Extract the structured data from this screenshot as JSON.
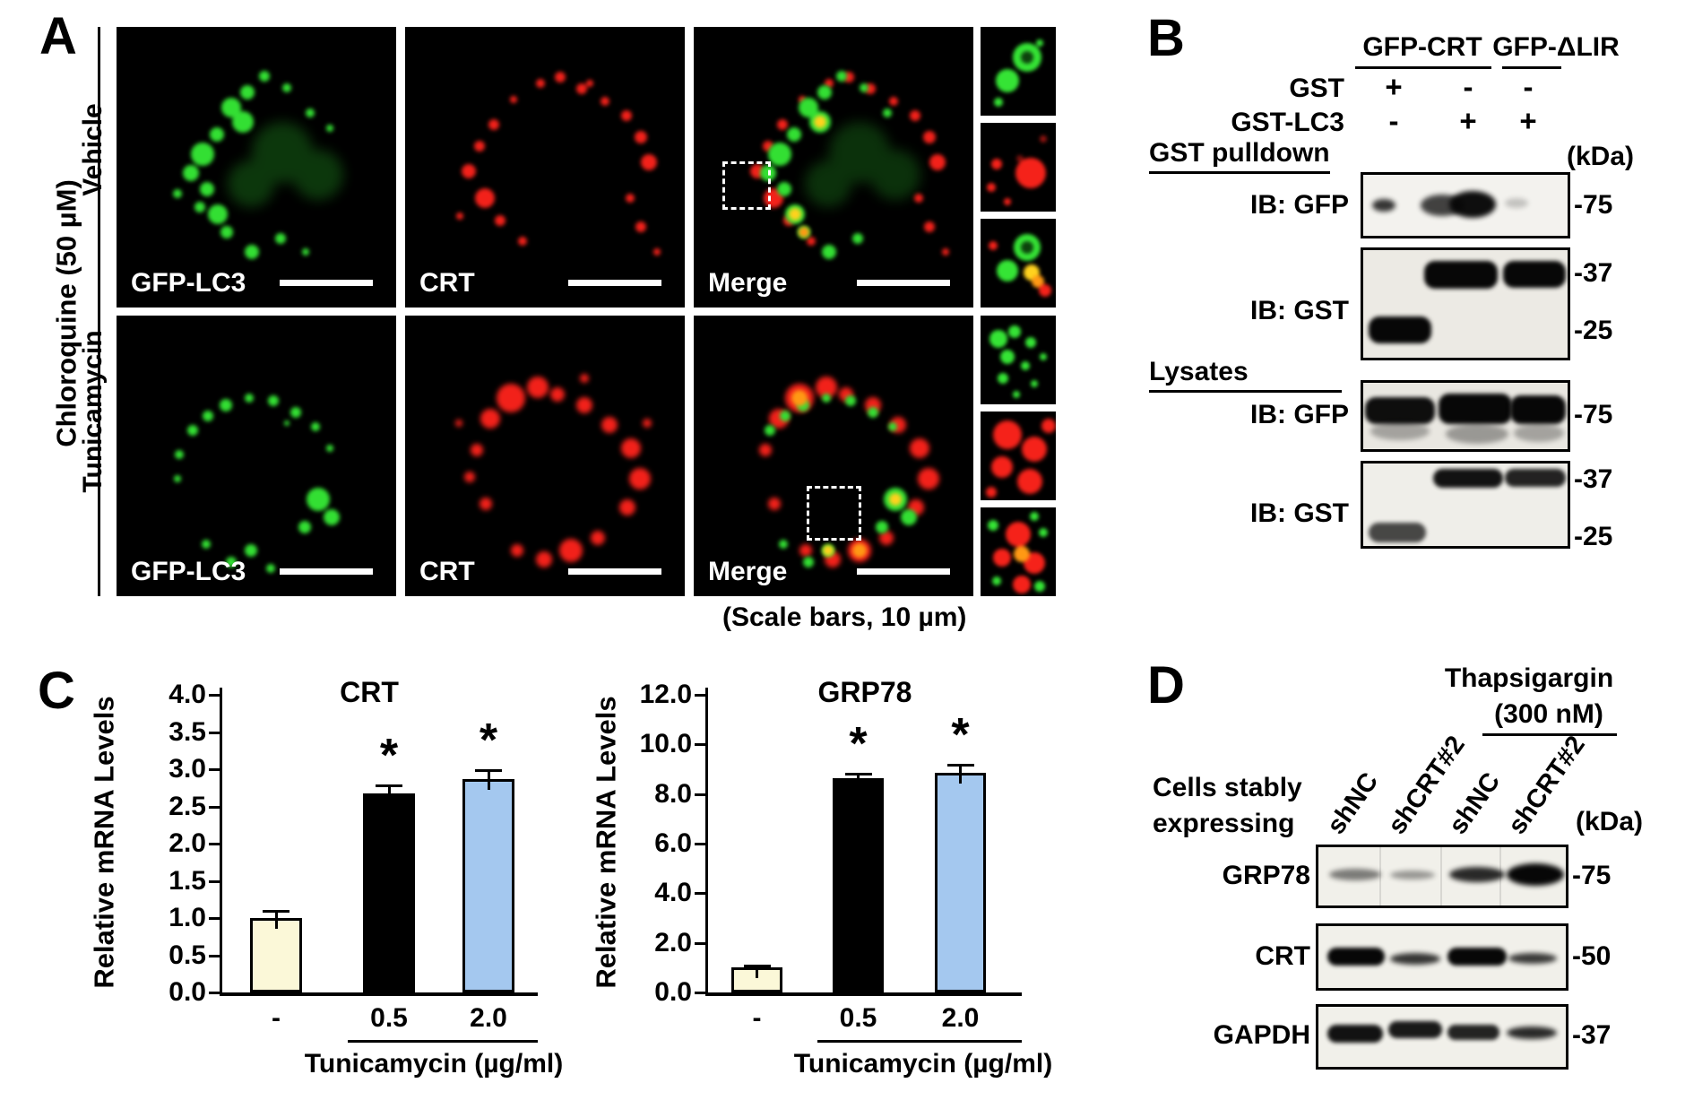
{
  "figure": {
    "panels": {
      "A": {
        "label": "A",
        "group_label": "Chloroquine (50 µM)",
        "rows": [
          {
            "label": "Vehicle",
            "image_labels": [
              "GFP-LC3",
              "CRT",
              "Merge"
            ]
          },
          {
            "label": "Tunicamycin",
            "image_labels": [
              "GFP-LC3",
              "CRT",
              "Merge"
            ]
          }
        ],
        "scale_note": "(Scale bars, 10 µm)"
      },
      "B": {
        "label": "B",
        "col_groups": [
          "GFP-CRT",
          "GFP-ΔLIR"
        ],
        "condition_rows": [
          {
            "label": "GST",
            "values": [
              "+",
              "-",
              "-"
            ]
          },
          {
            "label": "GST-LC3",
            "values": [
              "-",
              "+",
              "+"
            ]
          }
        ],
        "kda_label": "(kDa)",
        "sections": [
          {
            "label": "GST pulldown",
            "blots": [
              {
                "antibody": "IB: GFP",
                "markers": [
                  "-75"
                ]
              },
              {
                "antibody": "IB: GST",
                "markers": [
                  "-37",
                  "-25"
                ]
              }
            ]
          },
          {
            "label": "Lysates",
            "blots": [
              {
                "antibody": "IB: GFP",
                "markers": [
                  "-75"
                ]
              },
              {
                "antibody": "IB: GST",
                "markers": [
                  "-37",
                  "-25"
                ]
              }
            ]
          }
        ]
      },
      "C": {
        "label": "C"
      },
      "D": {
        "label": "D",
        "treatment": {
          "line1": "Thapsigargin",
          "line2": "(300 nM)"
        },
        "row_label": {
          "line1": "Cells stably",
          "line2": "expressing"
        },
        "lanes": [
          "shNC",
          "shCRT#2",
          "shNC",
          "shCRT#2"
        ],
        "kda_label": "(kDa)",
        "blots": [
          {
            "protein": "GRP78",
            "marker": "-75"
          },
          {
            "protein": "CRT",
            "marker": "-50"
          },
          {
            "protein": "GAPDH",
            "marker": "-37"
          }
        ]
      }
    }
  },
  "chart_data": [
    {
      "type": "bar",
      "title": "CRT",
      "ylabel": "Relative mRNA Levels",
      "xlabel": "Tunicamycin (µg/ml)",
      "categories": [
        "-",
        "0.5",
        "2.0"
      ],
      "values": [
        1.0,
        2.67,
        2.87
      ],
      "errors": [
        0.09,
        0.1,
        0.1
      ],
      "significance": [
        "",
        "*",
        "*"
      ],
      "bar_colors": [
        "#fbf8d8",
        "#000000",
        "#a4c8ef"
      ],
      "ylim": [
        0,
        4.0
      ],
      "ytick_step": 0.5,
      "grid": false,
      "legend_position": "none"
    },
    {
      "type": "bar",
      "title": "GRP78",
      "ylabel": "Relative mRNA Levels",
      "xlabel": "Tunicamycin (µg/ml)",
      "categories": [
        "-",
        "0.5",
        "2.0"
      ],
      "values": [
        1.0,
        8.65,
        8.85
      ],
      "errors": [
        0.06,
        0.15,
        0.3
      ],
      "significance": [
        "",
        "*",
        "*"
      ],
      "bar_colors": [
        "#fbf8d8",
        "#000000",
        "#a4c8ef"
      ],
      "ylim": [
        0,
        12.0
      ],
      "ytick_step": 2.0,
      "grid": false,
      "legend_position": "none"
    }
  ]
}
